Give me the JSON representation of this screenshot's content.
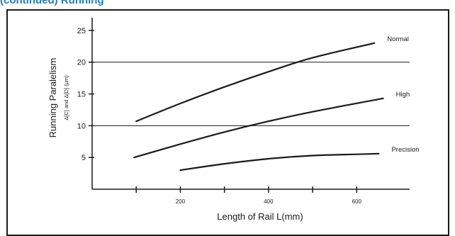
{
  "header_text": "(continued) Running",
  "chart_data": {
    "type": "line",
    "title": "",
    "xlabel": "Length of Rail L(mm)",
    "ylabel": "Running Paralelism",
    "ylabel_sub": "Δ[C] and Δ[D] (μm)",
    "xlim": [
      0,
      720
    ],
    "ylim": [
      0,
      27
    ],
    "x_ticks": [
      100,
      200,
      300,
      400,
      500,
      600
    ],
    "x_tick_labels": [
      "",
      "200",
      "",
      "400",
      "",
      "600"
    ],
    "y_ticks": [
      5,
      10,
      15,
      20,
      25
    ],
    "y_tick_labels": [
      "5",
      "10",
      "15",
      "20",
      "25"
    ],
    "gridlines_y": [
      10,
      20
    ],
    "legend": "inline-right",
    "series": [
      {
        "name": "Normal",
        "x": [
          100,
          200,
          300,
          400,
          500,
          640
        ],
        "y": [
          10.7,
          13.5,
          16.1,
          18.5,
          20.7,
          23.0
        ]
      },
      {
        "name": "High",
        "x": [
          95,
          200,
          300,
          400,
          500,
          660
        ],
        "y": [
          5.0,
          7.1,
          9.0,
          10.7,
          12.2,
          14.3
        ]
      },
      {
        "name": "Precision",
        "x": [
          200,
          300,
          400,
          500,
          600,
          650
        ],
        "y": [
          3.0,
          4.0,
          4.8,
          5.3,
          5.5,
          5.6
        ]
      }
    ]
  }
}
